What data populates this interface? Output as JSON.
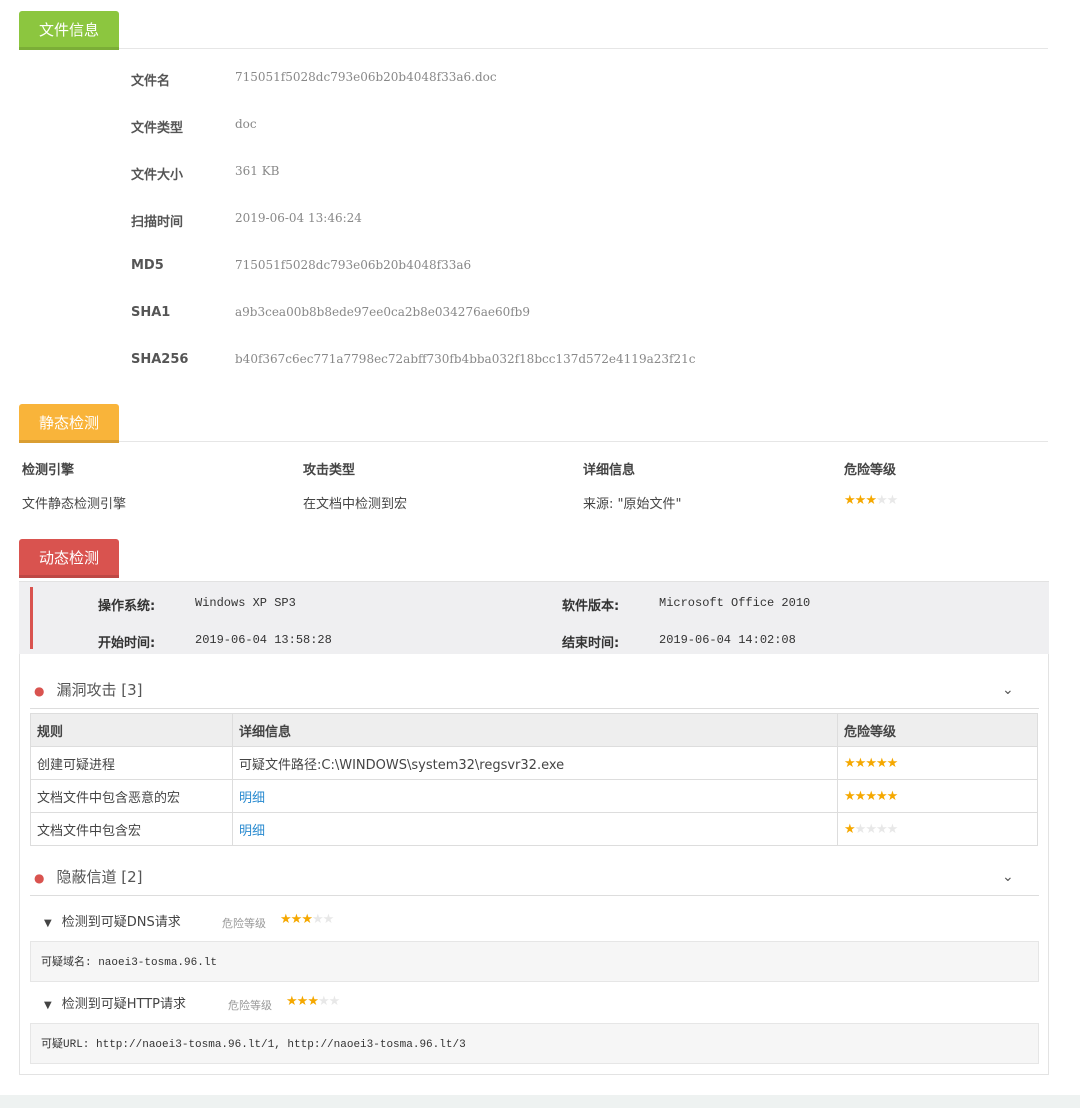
{
  "file_info": {
    "tab": "文件信息",
    "color": "#8cc63f",
    "rows": [
      {
        "label": "文件名",
        "value": "715051f5028dc793e06b20b4048f33a6.doc"
      },
      {
        "label": "文件类型",
        "value": "doc"
      },
      {
        "label": "文件大小",
        "value": "361 KB"
      },
      {
        "label": "扫描时间",
        "value": "2019-06-04 13:46:24"
      },
      {
        "label": "MD5",
        "value": "715051f5028dc793e06b20b4048f33a6"
      },
      {
        "label": "SHA1",
        "value": "a9b3cea00b8b8ede97ee0ca2b8e034276ae60fb9"
      },
      {
        "label": "SHA256",
        "value": "b40f367c6ec771a7798ec72abff730fb4bba032f18bcc137d572e4119a23f21c"
      }
    ]
  },
  "static": {
    "tab": "静态检测",
    "color": "#f9b43a",
    "headers": [
      "检测引擎",
      "攻击类型",
      "详细信息",
      "危险等级"
    ],
    "row": {
      "engine": "文件静态检测引擎",
      "type": "在文档中检测到宏",
      "detail": "来源: \"原始文件\"",
      "risk": 3
    }
  },
  "dynamic": {
    "tab": "动态检测",
    "color": "#d9534f",
    "os_label": "操作系统:",
    "os": "Windows XP SP3",
    "sw_label": "软件版本:",
    "sw": "Microsoft Office 2010",
    "start_label": "开始时间:",
    "start": "2019-06-04 13:58:28",
    "end_label": "结束时间:",
    "end": "2019-06-04 14:02:08",
    "exploit": {
      "title": "漏洞攻击 [3]",
      "headers": [
        "规则",
        "详细信息",
        "危险等级"
      ],
      "rows": [
        {
          "rule": "创建可疑进程",
          "detail": "可疑文件路径:C:\\WINDOWS\\system32\\regsvr32.exe",
          "link": false,
          "risk": 5
        },
        {
          "rule": "文档文件中包含恶意的宏",
          "detail": "明细",
          "link": true,
          "risk": 5
        },
        {
          "rule": "文档文件中包含宏",
          "detail": "明细",
          "link": true,
          "risk": 1
        }
      ]
    },
    "covert": {
      "title": "隐蔽信道 [2]",
      "risk_label": "危险等级",
      "items": [
        {
          "title": "检测到可疑DNS请求",
          "risk": 3,
          "content": "可疑域名: naoei3-tosma.96.lt"
        },
        {
          "title": "检测到可疑HTTP请求",
          "risk": 3,
          "content": "可疑URL: http://naoei3-tosma.96.lt/1, http://naoei3-tosma.96.lt/3"
        }
      ]
    }
  }
}
